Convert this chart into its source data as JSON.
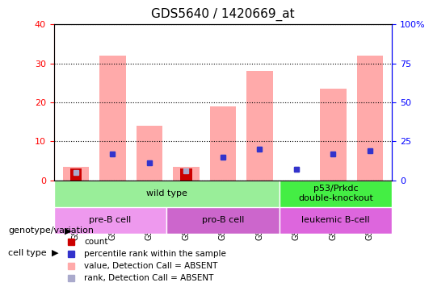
{
  "title": "GDS5640 / 1420669_at",
  "samples": [
    "GSM1359549",
    "GSM1359550",
    "GSM1359551",
    "GSM1359555",
    "GSM1359556",
    "GSM1359557",
    "GSM1359552",
    "GSM1359553",
    "GSM1359554"
  ],
  "count_values": [
    3,
    0,
    0,
    3,
    0,
    0,
    0,
    0,
    0
  ],
  "rank_values": [
    0,
    17,
    11,
    0,
    15,
    20,
    7,
    17,
    19
  ],
  "absent_count_values": [
    3.5,
    32,
    14,
    3.5,
    19,
    28,
    0,
    23.5,
    32
  ],
  "absent_rank_values": [
    5,
    17,
    11,
    6,
    15,
    20,
    7,
    17,
    19
  ],
  "count_color": "#cc0000",
  "rank_color": "#3333cc",
  "absent_count_color": "#ffaaaa",
  "absent_rank_color": "#aaaacc",
  "ylim_left": [
    0,
    40
  ],
  "ylim_right": [
    0,
    100
  ],
  "yticks_left": [
    0,
    10,
    20,
    30,
    40
  ],
  "yticks_right": [
    0,
    25,
    50,
    75,
    100
  ],
  "ytick_labels_right": [
    "0",
    "25",
    "50",
    "75",
    "100%"
  ],
  "genotype_groups": [
    {
      "label": "wild type",
      "start": 0,
      "end": 6,
      "color": "#99ee99"
    },
    {
      "label": "p53/Prkdc\ndouble-knockout",
      "start": 6,
      "end": 9,
      "color": "#44ee44"
    }
  ],
  "celltype_groups": [
    {
      "label": "pre-B cell",
      "start": 0,
      "end": 3,
      "color": "#ee99ee"
    },
    {
      "label": "pro-B cell",
      "start": 3,
      "end": 6,
      "color": "#cc66cc"
    },
    {
      "label": "leukemic B-cell",
      "start": 6,
      "end": 9,
      "color": "#dd66dd"
    }
  ],
  "legend_items": [
    {
      "label": "count",
      "color": "#cc0000",
      "marker": "s"
    },
    {
      "label": "percentile rank within the sample",
      "color": "#3333cc",
      "marker": "s"
    },
    {
      "label": "value, Detection Call = ABSENT",
      "color": "#ffaaaa",
      "marker": "s"
    },
    {
      "label": "rank, Detection Call = ABSENT",
      "color": "#aaaacc",
      "marker": "s"
    }
  ],
  "left_labels": [
    "genotype/variation",
    "cell type"
  ],
  "bar_width": 0.4
}
